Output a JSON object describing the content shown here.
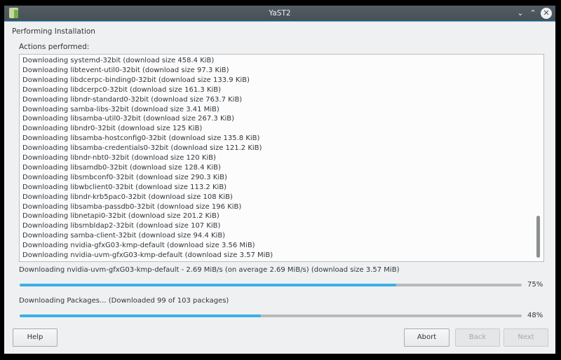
{
  "window": {
    "title": "YaST2",
    "controls": [
      "minimize",
      "maximize",
      "close"
    ]
  },
  "heading": "Performing Installation",
  "actions_label": "Actions performed:",
  "actions": [
    "Downloading systemd-32bit (download size 458.4 KiB)",
    "Downloading libtevent-util0-32bit (download size 97.3 KiB)",
    "Downloading libdcerpc-binding0-32bit (download size 133.9 KiB)",
    "Downloading libdcerpc0-32bit (download size 161.3 KiB)",
    "Downloading libndr-standard0-32bit (download size 763.7 KiB)",
    "Downloading samba-libs-32bit (download size 3.41 MiB)",
    "Downloading libsamba-util0-32bit (download size 267.3 KiB)",
    "Downloading libndr0-32bit (download size 125 KiB)",
    "Downloading libsamba-hostconfig0-32bit (download size 135.8 KiB)",
    "Downloading libsamba-credentials0-32bit (download size 121.2 KiB)",
    "Downloading libndr-nbt0-32bit (download size 120 KiB)",
    "Downloading libsamdb0-32bit (download size 128.4 KiB)",
    "Downloading libsmbconf0-32bit (download size 290.3 KiB)",
    "Downloading libwbclient0-32bit (download size 113.2 KiB)",
    "Downloading libndr-krb5pac0-32bit (download size 108 KiB)",
    "Downloading libsamba-passdb0-32bit (download size 196 KiB)",
    "Downloading libnetapi0-32bit (download size 201.2 KiB)",
    "Downloading libsmbldap2-32bit (download size 107 KiB)",
    "Downloading samba-client-32bit (download size 94.4 KiB)",
    "Downloading nvidia-gfxG03-kmp-default (download size 3.56 MiB)",
    "Downloading nvidia-uvm-gfxG03-kmp-default (download size 3.57 MiB)"
  ],
  "progress": [
    {
      "text": "Downloading nvidia-uvm-gfxG03-kmp-default - 2.69 MiB/s (on average 2.69 MiB/s) (download size 3.57 MiB)",
      "value": 75,
      "label": "75%"
    },
    {
      "text": "Downloading Packages... (Downloaded 99 of 103 packages)",
      "value": 48,
      "label": "48%"
    }
  ],
  "buttons": {
    "help": "Help",
    "abort": "Abort",
    "back": "Back",
    "next": "Next"
  },
  "colors": {
    "accent": "#3daee9",
    "titlebar": "#475057",
    "background": "#eff0f1"
  }
}
